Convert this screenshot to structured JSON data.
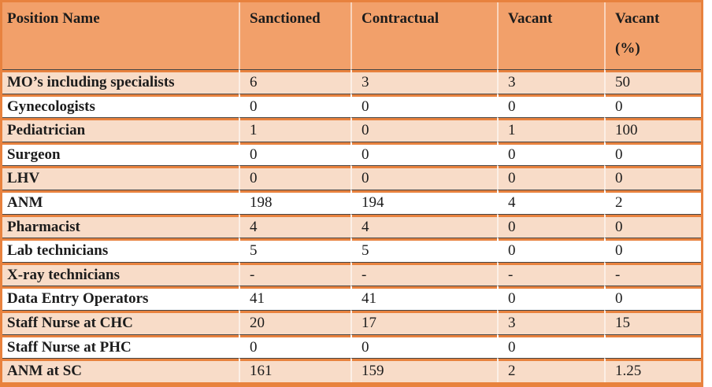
{
  "colors": {
    "accent": "#E8823E",
    "header_fill": "#F2A06A",
    "band_fill": "#F8DCC8",
    "row_divider": "#454545",
    "column_divider": "rgba(255,255,255,0.55)",
    "text": "#1c1c1c"
  },
  "table": {
    "columns": [
      {
        "label": "Position Name"
      },
      {
        "label": "Sanctioned"
      },
      {
        "label": "Contractual"
      },
      {
        "label": "Vacant"
      },
      {
        "label": "Vacant",
        "label_line2": "(%)"
      }
    ],
    "rows": [
      {
        "position": "MO’s including specialists",
        "sanctioned": "6",
        "contractual": "3",
        "vacant": "3",
        "vacant_pct": "50"
      },
      {
        "position": "Gynecologists",
        "sanctioned": "0",
        "contractual": "0",
        "vacant": "0",
        "vacant_pct": "0"
      },
      {
        "position": "Pediatrician",
        "sanctioned": "1",
        "contractual": "0",
        "vacant": "1",
        "vacant_pct": "100"
      },
      {
        "position": "Surgeon",
        "sanctioned": "0",
        "contractual": "0",
        "vacant": "0",
        "vacant_pct": "0"
      },
      {
        "position": "LHV",
        "sanctioned": "0",
        "contractual": "0",
        "vacant": "0",
        "vacant_pct": "0"
      },
      {
        "position": "ANM",
        "sanctioned": "198",
        "contractual": "194",
        "vacant": "4",
        "vacant_pct": "2"
      },
      {
        "position": "Pharmacist",
        "sanctioned": "4",
        "contractual": "4",
        "vacant": "0",
        "vacant_pct": "0"
      },
      {
        "position": "Lab technicians",
        "sanctioned": "5",
        "contractual": "5",
        "vacant": "0",
        "vacant_pct": "0"
      },
      {
        "position": "X-ray technicians",
        "sanctioned": "-",
        "contractual": "-",
        "vacant": "-",
        "vacant_pct": "-"
      },
      {
        "position": "Data Entry Operators",
        "sanctioned": "41",
        "contractual": "41",
        "vacant": "0",
        "vacant_pct": "0"
      },
      {
        "position": "Staff Nurse at CHC",
        "sanctioned": "20",
        "contractual": "17",
        "vacant": "3",
        "vacant_pct": "15"
      },
      {
        "position": "Staff Nurse at PHC",
        "sanctioned": "0",
        "contractual": "0",
        "vacant": "0",
        "vacant_pct": ""
      },
      {
        "position": "ANM at SC",
        "sanctioned": "161",
        "contractual": "159",
        "vacant": "2",
        "vacant_pct": "1.25"
      }
    ]
  }
}
